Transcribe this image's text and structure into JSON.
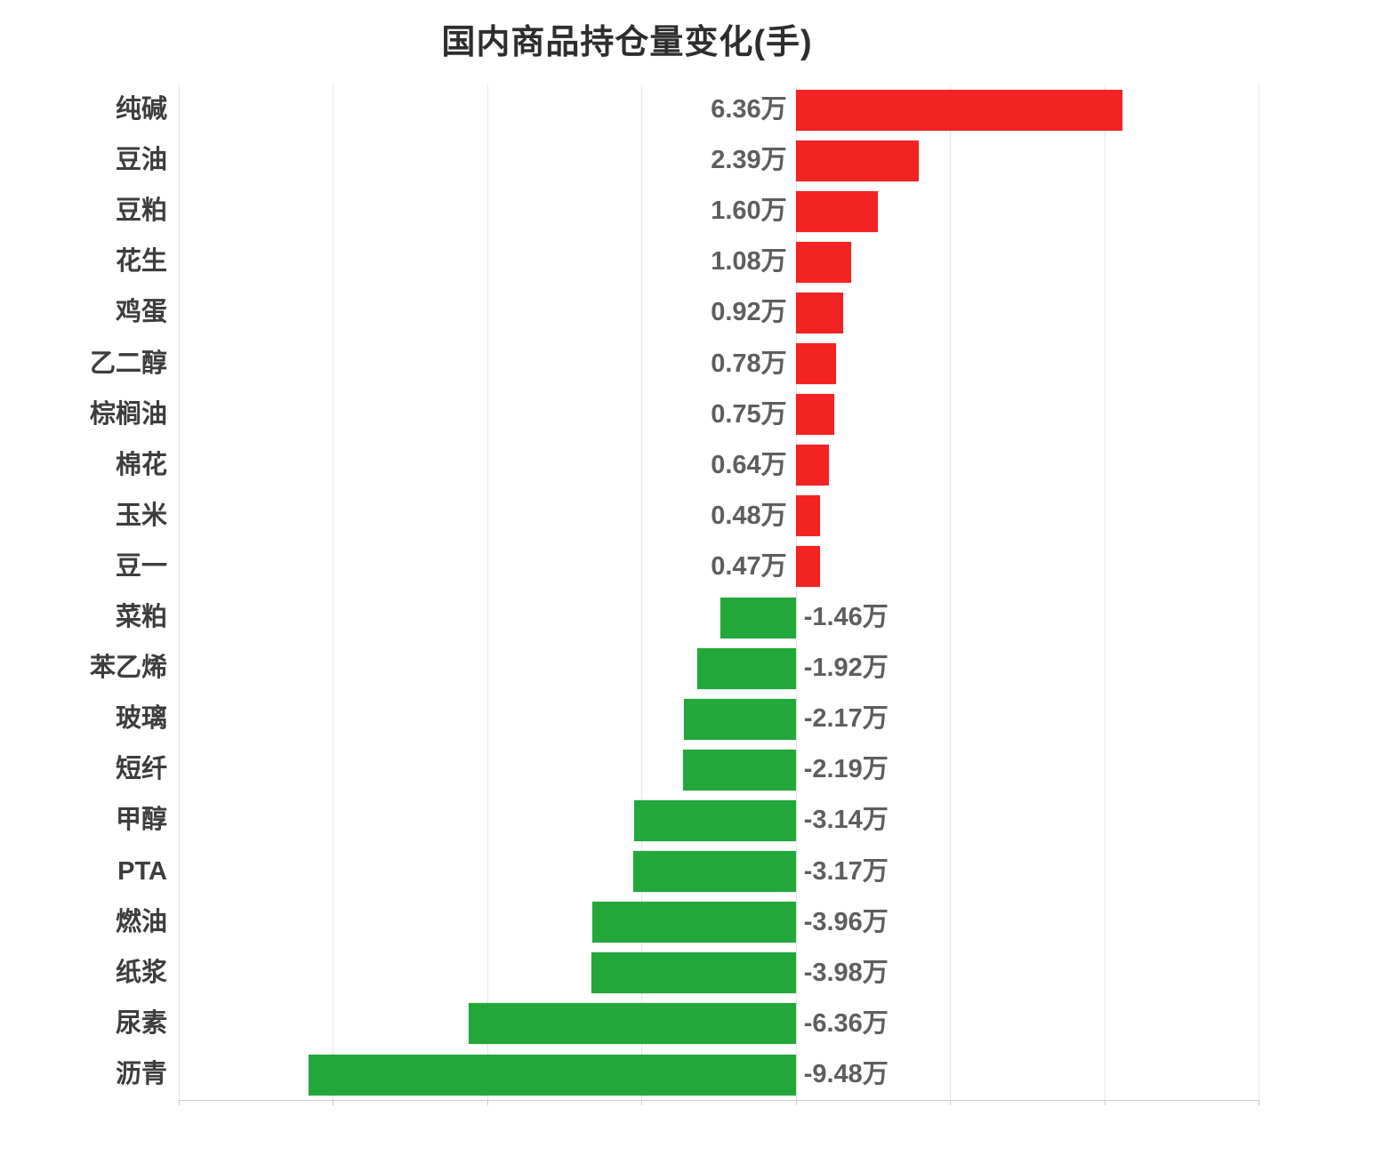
{
  "chart_data": {
    "type": "bar",
    "orientation": "horizontal",
    "title": "国内商品持仓量变化(手)",
    "unit": "万",
    "categories": [
      "纯碱",
      "豆油",
      "豆粕",
      "花生",
      "鸡蛋",
      "乙二醇",
      "棕榈油",
      "棉花",
      "玉米",
      "豆一",
      "菜粕",
      "苯乙烯",
      "玻璃",
      "短纤",
      "甲醇",
      "PTA",
      "燃油",
      "纸浆",
      "尿素",
      "沥青"
    ],
    "values": [
      6.36,
      2.39,
      1.6,
      1.08,
      0.92,
      0.78,
      0.75,
      0.64,
      0.48,
      0.47,
      -1.46,
      -1.92,
      -2.17,
      -2.19,
      -3.14,
      -3.17,
      -3.96,
      -3.98,
      -6.36,
      -9.48
    ],
    "value_labels": [
      "6.36万",
      "2.39万",
      "1.60万",
      "1.08万",
      "0.92万",
      "0.78万",
      "0.75万",
      "0.64万",
      "0.48万",
      "0.47万",
      "-1.46万",
      "-1.92万",
      "-2.17万",
      "-2.19万",
      "-3.14万",
      "-3.17万",
      "-3.96万",
      "-3.98万",
      "-6.36万",
      "-9.48万"
    ],
    "xlim": [
      -12,
      9
    ],
    "grid_interval": 3,
    "grid": true,
    "legend": false,
    "x_axis_tick_labels_visible": false,
    "positive_color": "#f32323",
    "negative_color": "#22a83a"
  }
}
